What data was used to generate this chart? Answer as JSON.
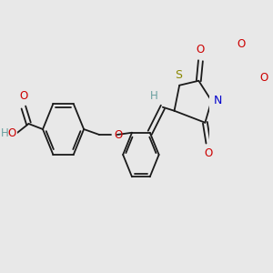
{
  "background_color": "#e8e8e8",
  "bond_color": "#1a1a1a",
  "bond_width": 1.3,
  "figsize": [
    3.0,
    3.0
  ],
  "dpi": 100,
  "xlim": [
    0,
    300
  ],
  "ylim": [
    0,
    300
  ]
}
